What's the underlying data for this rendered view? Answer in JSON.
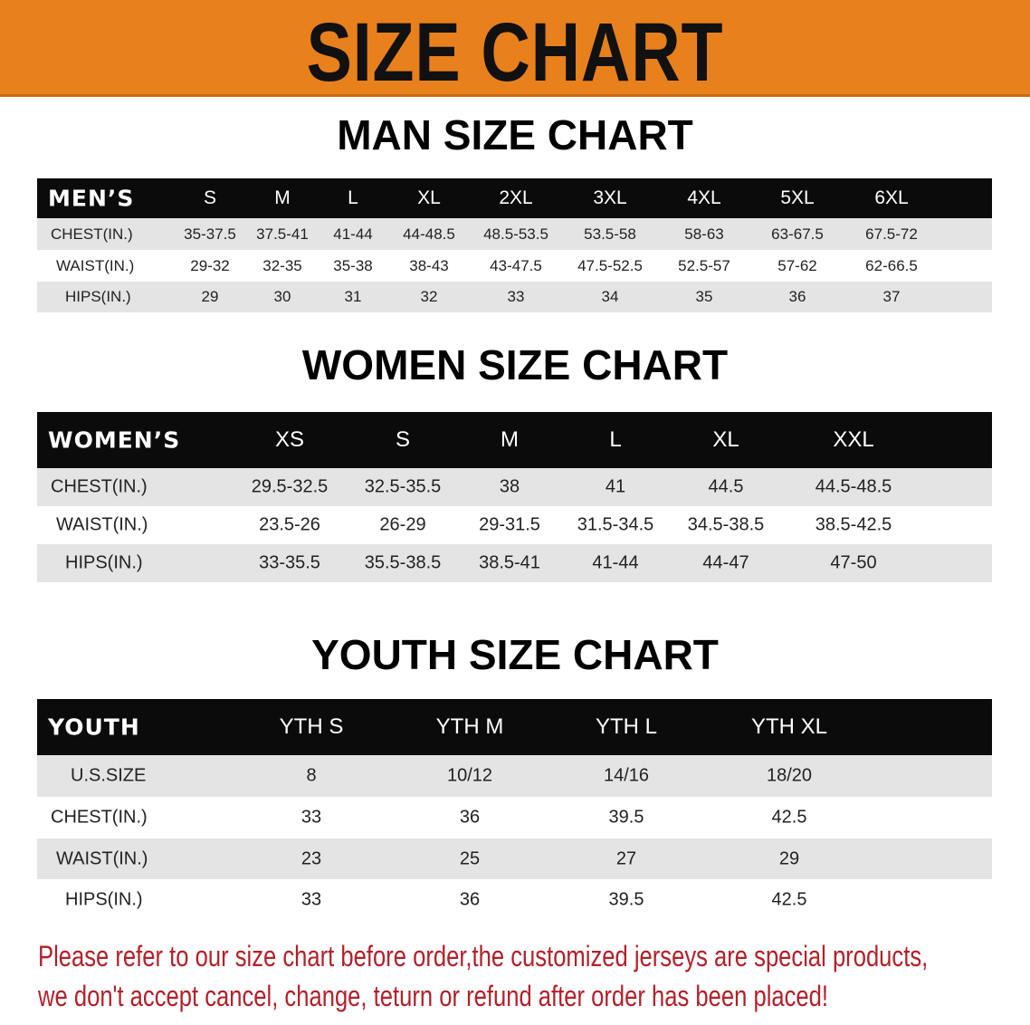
{
  "banner": {
    "title": "SIZE CHART",
    "color": "#e8801c"
  },
  "men": {
    "title": "MAN SIZE CHART",
    "header_label": "MEN’S",
    "sizes": [
      "S",
      "M",
      "L",
      "XL",
      "2XL",
      "3XL",
      "4XL",
      "5XL",
      "6XL"
    ],
    "rows": [
      {
        "label": "CHEST(IN.)",
        "values": [
          "35-37.5",
          "37.5-41",
          "41-44",
          "44-48.5",
          "48.5-53.5",
          "53.5-58",
          "58-63",
          "63-67.5",
          "67.5-72"
        ]
      },
      {
        "label": "WAIST(IN.)",
        "values": [
          "29-32",
          "32-35",
          "35-38",
          "38-43",
          "43-47.5",
          "47.5-52.5",
          "52.5-57",
          "57-62",
          "62-66.5"
        ]
      },
      {
        "label": "HIPS(IN.)",
        "values": [
          "29",
          "30",
          "31",
          "32",
          "33",
          "34",
          "35",
          "36",
          "37"
        ]
      }
    ]
  },
  "women": {
    "title": "WOMEN SIZE CHART",
    "header_label": "WOMEN’S",
    "sizes": [
      "XS",
      "S",
      "M",
      "L",
      "XL",
      "XXL"
    ],
    "rows": [
      {
        "label": "CHEST(IN.)",
        "values": [
          "29.5-32.5",
          "32.5-35.5",
          "38",
          "41",
          "44.5",
          "44.5-48.5"
        ]
      },
      {
        "label": "WAIST(IN.)",
        "values": [
          "23.5-26",
          "26-29",
          "29-31.5",
          "31.5-34.5",
          "34.5-38.5",
          "38.5-42.5"
        ]
      },
      {
        "label": "HIPS(IN.)",
        "values": [
          "33-35.5",
          "35.5-38.5",
          "38.5-41",
          "41-44",
          "44-47",
          "47-50"
        ]
      }
    ]
  },
  "youth": {
    "title": "YOUTH SIZE CHART",
    "header_label": "YOUTH",
    "sizes": [
      "YTH S",
      "YTH M",
      "YTH L",
      "YTH XL"
    ],
    "rows": [
      {
        "label": "U.S.SIZE",
        "values": [
          "8",
          "10/12",
          "14/16",
          "18/20"
        ]
      },
      {
        "label": "CHEST(IN.)",
        "values": [
          "33",
          "36",
          "39.5",
          "42.5"
        ]
      },
      {
        "label": "WAIST(IN.)",
        "values": [
          "23",
          "25",
          "27",
          "29"
        ]
      },
      {
        "label": "HIPS(IN.)",
        "values": [
          "33",
          "36",
          "39.5",
          "42.5"
        ]
      }
    ]
  },
  "notice": {
    "line1": "Please refer to our size chart before order,the customized jerseys are special products,",
    "line2": "we don't accept cancel, change, teturn or refund after order has been placed!",
    "color": "#b3202a"
  }
}
